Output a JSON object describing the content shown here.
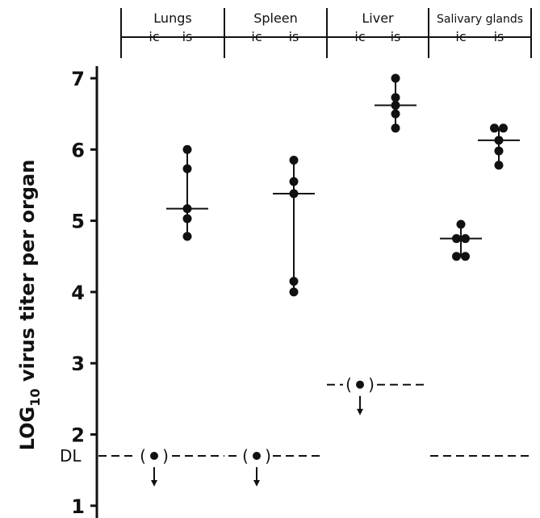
{
  "chart_data": {
    "type": "scatter",
    "ylabel_prefix": "LOG",
    "ylabel_sub": "10",
    "ylabel_rest": " virus titer per organ",
    "ylim": [
      1,
      7
    ],
    "yticks": [
      "1",
      "2",
      "3",
      "4",
      "5",
      "6",
      "7"
    ],
    "dl_label": "DL",
    "detection_limit": {
      "default": 1.7,
      "liver": 2.7
    },
    "groups": [
      {
        "name": "Lungs",
        "routes": [
          "ic",
          "is"
        ]
      },
      {
        "name": "Spleen",
        "routes": [
          "ic",
          "is"
        ]
      },
      {
        "name": "Liver",
        "routes": [
          "ic",
          "is"
        ]
      },
      {
        "name": "Salivary glands",
        "routes": [
          "ic",
          "is"
        ]
      }
    ],
    "series": [
      {
        "group": "Lungs",
        "route": "ic",
        "below_detection": true,
        "values": []
      },
      {
        "group": "Lungs",
        "route": "is",
        "below_detection": false,
        "values": [
          6.0,
          5.73,
          5.17,
          5.03,
          4.78
        ],
        "median": 5.17
      },
      {
        "group": "Spleen",
        "route": "ic",
        "below_detection": true,
        "values": []
      },
      {
        "group": "Spleen",
        "route": "is",
        "below_detection": false,
        "values": [
          5.85,
          5.55,
          5.38,
          4.15,
          4.0
        ],
        "median": 5.38
      },
      {
        "group": "Liver",
        "route": "ic",
        "below_detection": true,
        "values": []
      },
      {
        "group": "Liver",
        "route": "is",
        "below_detection": false,
        "values": [
          7.0,
          6.73,
          6.62,
          6.5,
          6.3
        ],
        "median": 6.62
      },
      {
        "group": "Salivary glands",
        "route": "ic",
        "below_detection": false,
        "values": [
          4.95,
          4.75,
          4.75,
          4.5,
          4.5
        ],
        "median": 4.75
      },
      {
        "group": "Salivary glands",
        "route": "is",
        "below_detection": false,
        "values": [
          6.3,
          6.3,
          6.13,
          5.98,
          5.78
        ],
        "median": 6.13
      }
    ]
  }
}
